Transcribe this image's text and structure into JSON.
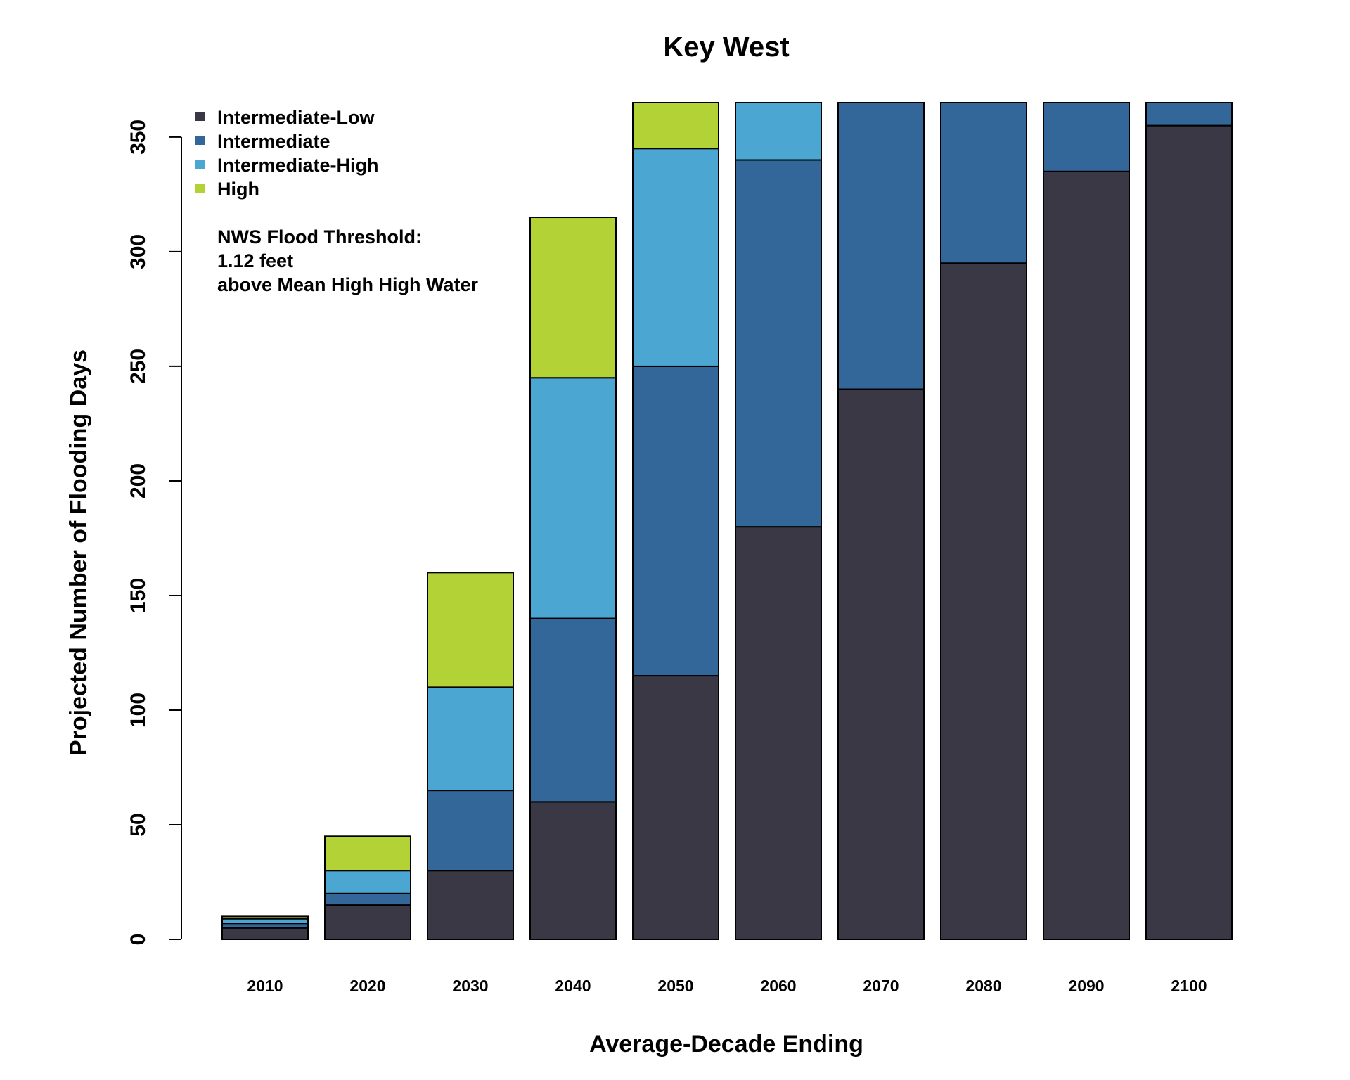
{
  "chart_data": {
    "type": "bar",
    "stacked": true,
    "title": "Key West",
    "xlabel": "Average-Decade Ending",
    "ylabel": "Projected Number of Flooding Days",
    "ylim": [
      0,
      365
    ],
    "yticks": [
      "0",
      "50",
      "100",
      "150",
      "200",
      "250",
      "300",
      "350"
    ],
    "grid": false,
    "legend_position": "top-left",
    "categories": [
      "2010",
      "2020",
      "2030",
      "2040",
      "2050",
      "2060",
      "2070",
      "2080",
      "2090",
      "2100"
    ],
    "series": [
      {
        "name": "Intermediate-Low",
        "color": "#393844",
        "values": [
          5,
          15,
          30,
          60,
          115,
          180,
          240,
          295,
          335,
          355
        ]
      },
      {
        "name": "Intermediate",
        "color": "#336699",
        "values": [
          2,
          5,
          35,
          80,
          135,
          160,
          125,
          70,
          30,
          10
        ]
      },
      {
        "name": "Intermediate-High",
        "color": "#4ca6d2",
        "values": [
          2,
          10,
          45,
          105,
          95,
          25,
          0,
          0,
          0,
          0
        ]
      },
      {
        "name": "High",
        "color": "#b3d235",
        "values": [
          1,
          15,
          50,
          70,
          20,
          0,
          0,
          0,
          0,
          0
        ]
      }
    ],
    "annotation": [
      "NWS Flood Threshold:",
      "1.12 feet",
      "above Mean High High Water"
    ]
  }
}
